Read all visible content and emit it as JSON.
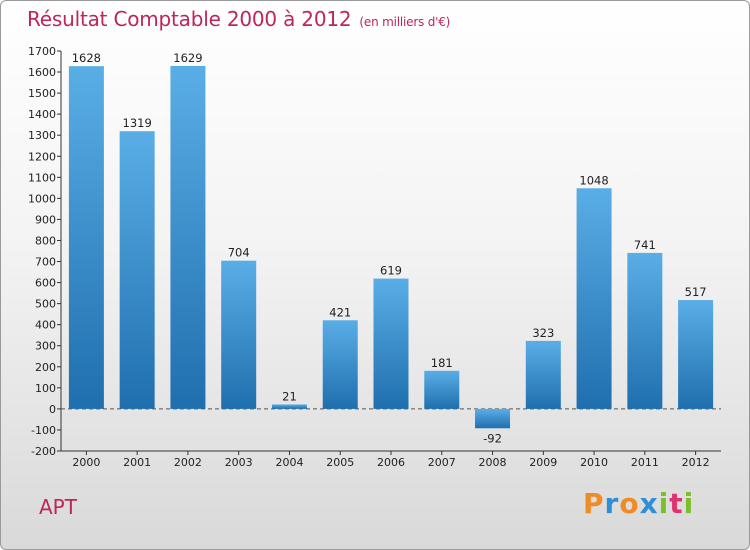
{
  "header": {
    "title": "Résultat Comptable 2000 à 2012",
    "subtitle": "(en milliers d'€)"
  },
  "footer": {
    "city": "APT"
  },
  "logo": {
    "letters": [
      {
        "ch": "P",
        "color": "#f08a24"
      },
      {
        "ch": "r",
        "color": "#2f8fd6"
      },
      {
        "ch": "o",
        "color": "#f08a24"
      },
      {
        "ch": "x",
        "color": "#2f8fd6"
      },
      {
        "ch": "i",
        "color": "#7bbf2a"
      },
      {
        "ch": "t",
        "color": "#e0336e"
      },
      {
        "ch": "i",
        "color": "#7bbf2a"
      }
    ]
  },
  "chart_data": {
    "type": "bar",
    "title": "Résultat Comptable 2000 à 2012",
    "subtitle": "(en milliers d'€)",
    "xlabel": "",
    "ylabel": "",
    "categories": [
      "2000",
      "2001",
      "2002",
      "2003",
      "2004",
      "2005",
      "2006",
      "2007",
      "2008",
      "2009",
      "2010",
      "2011",
      "2012"
    ],
    "values": [
      1628,
      1319,
      1629,
      704,
      21,
      421,
      619,
      181,
      -92,
      323,
      1048,
      741,
      517
    ],
    "ylim": [
      -200,
      1700
    ],
    "yticks": [
      -200,
      -100,
      0,
      100,
      200,
      300,
      400,
      500,
      600,
      700,
      800,
      900,
      1000,
      1100,
      1200,
      1300,
      1400,
      1500,
      1600,
      1700
    ],
    "grid": false,
    "colors": {
      "bar_top": "#5aaee6",
      "bar_bottom": "#1f6fae"
    }
  }
}
